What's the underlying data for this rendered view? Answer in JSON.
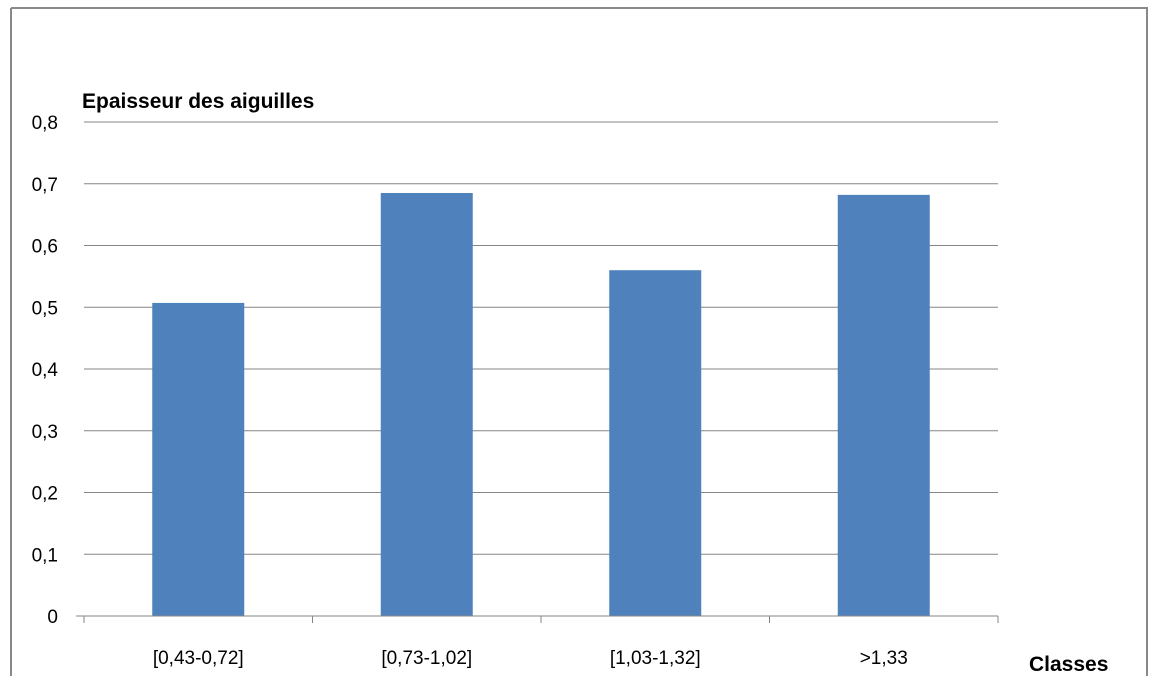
{
  "chart_data": {
    "type": "bar",
    "ylabel": "Epaisseur des aiguilles",
    "xlabel": "Classes",
    "categories": [
      "[0,43-0,72]",
      "[0,73-1,02]",
      "[1,03-1,32]",
      ">1,33"
    ],
    "values": [
      0.507,
      0.685,
      0.56,
      0.682
    ],
    "ylim": [
      0,
      0.8
    ],
    "yticks": [
      "0",
      "0,1",
      "0,2",
      "0,3",
      "0,4",
      "0,5",
      "0,6",
      "0,7",
      "0,8"
    ],
    "grid": true,
    "legend": "none",
    "bar_color": "#4F81BD",
    "gridline_color": "#868686",
    "frame_color": "#898989"
  }
}
